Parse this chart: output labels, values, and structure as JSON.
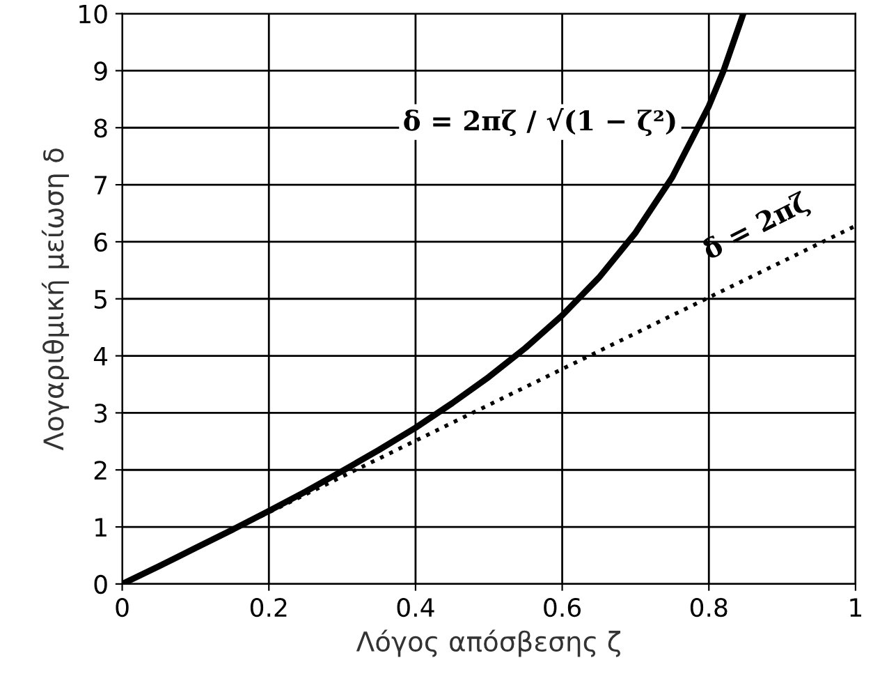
{
  "chart_data": {
    "type": "line",
    "xlabel": "Λόγος απόσβεσης ζ",
    "ylabel": "Λογαριθμική μείωση δ",
    "xlim": [
      0,
      1
    ],
    "ylim": [
      0,
      10
    ],
    "xticks": [
      0,
      0.2,
      0.4,
      0.6,
      0.8,
      1
    ],
    "yticks": [
      0,
      1,
      2,
      3,
      4,
      5,
      6,
      7,
      8,
      9,
      10
    ],
    "grid": true,
    "series": [
      {
        "color": "#000000",
        "line_style": "solid",
        "x": [
          0,
          0.05,
          0.1,
          0.15,
          0.2,
          0.25,
          0.3,
          0.35,
          0.4,
          0.45,
          0.5,
          0.55,
          0.6,
          0.65,
          0.7,
          0.75,
          0.8,
          0.82,
          0.847
        ],
        "values": [
          0,
          0.31,
          0.63,
          0.95,
          1.28,
          1.62,
          1.98,
          2.35,
          2.74,
          3.17,
          3.63,
          4.14,
          4.71,
          5.37,
          6.16,
          7.13,
          8.38,
          9.0,
          10.0
        ]
      },
      {
        "color": "#000000",
        "line_style": "dotted",
        "x": [
          0,
          1
        ],
        "values": [
          0,
          6.28
        ]
      }
    ],
    "annotations": [
      "δ = 2πζ / √(1 − ζ²)",
      "δ = 2πζ"
    ]
  }
}
